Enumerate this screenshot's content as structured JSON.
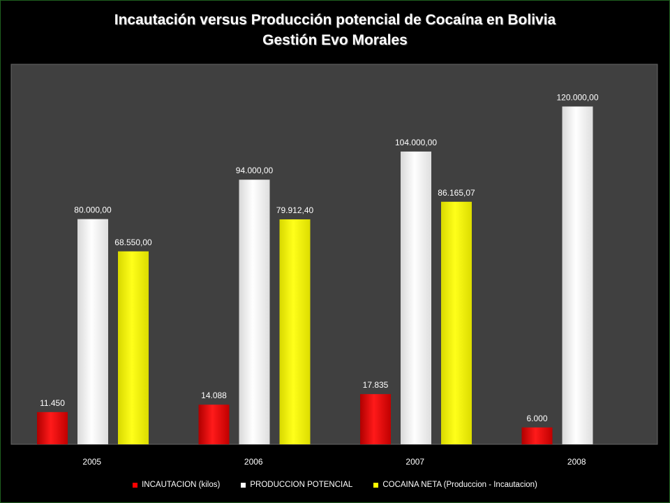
{
  "chart_data": {
    "type": "bar",
    "title": "Incautación versus Producción potencial de Cocaína en Bolivia",
    "subtitle": "Gestión Evo Morales",
    "categories": [
      "2005",
      "2006",
      "2007",
      "2008"
    ],
    "ylim": [
      0,
      135000
    ],
    "grid": false,
    "legend_position": "bottom",
    "colors": {
      "background": "#000000",
      "plot_area": "#404040"
    },
    "series": [
      {
        "name": "INCAUTACION (kilos)",
        "color": "#ff0000",
        "values": [
          11450,
          14088,
          17835,
          6000
        ],
        "labels": [
          "11.450",
          "14.088",
          "17.835",
          "6.000"
        ]
      },
      {
        "name": "PRODUCCION POTENCIAL",
        "color": "#ffffff",
        "values": [
          80000,
          94000,
          104000,
          120000
        ],
        "labels": [
          "80.000,00",
          "94.000,00",
          "104.000,00",
          "120.000,00"
        ]
      },
      {
        "name": "COCAINA NETA  (Produccion - Incautacion)",
        "color": "#ffff00",
        "values": [
          68550,
          79912.4,
          86165.07,
          null
        ],
        "labels": [
          "68.550,00",
          "79.912,40",
          "86.165,07",
          null
        ]
      }
    ]
  }
}
